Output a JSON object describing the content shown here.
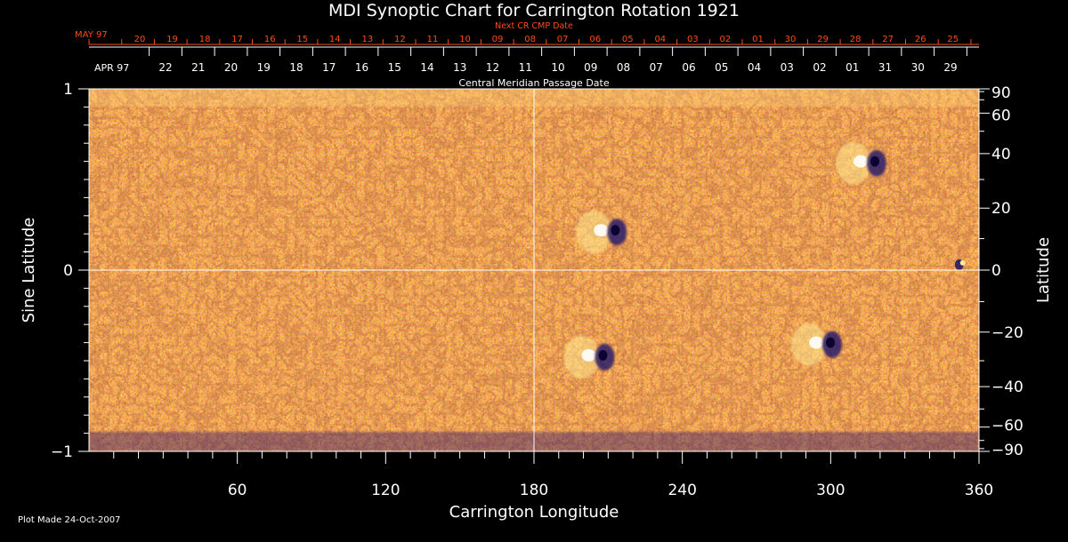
{
  "chart_data": {
    "type": "heatmap",
    "title": "MDI Synoptic Chart for Carrington Rotation 1921",
    "xlabel": "Carrington Longitude",
    "ylabel_left": "Sine Latitude",
    "ylabel_right": "Latitude",
    "x_range": [
      0,
      360
    ],
    "y_range": [
      -1,
      1
    ],
    "x_ticks": [
      60,
      120,
      180,
      240,
      300,
      360
    ],
    "y_ticks_left": [
      -1,
      0,
      1
    ],
    "y_ticks_left_labels": [
      "−1",
      "0",
      "1"
    ],
    "y_ticks_right": [
      90,
      60,
      40,
      20,
      0,
      -20,
      -40,
      -60,
      -90
    ],
    "y_ticks_right_labels": [
      "90",
      "60",
      "40",
      "20",
      "0",
      "−20",
      "−40",
      "−60",
      "−90"
    ],
    "top_axis_upper": {
      "caption": "Next CR CMP Date",
      "start_label": "MAY 97",
      "labels": [
        "20",
        "19",
        "18",
        "17",
        "16",
        "15",
        "14",
        "13",
        "12",
        "11",
        "10",
        "09",
        "08",
        "07",
        "06",
        "05",
        "04",
        "03",
        "02",
        "01",
        "30",
        "29",
        "28",
        "27",
        "26",
        "25"
      ]
    },
    "top_axis_lower": {
      "caption": "Central Meridian Passage Date",
      "start_label": "APR 97",
      "labels": [
        "22",
        "21",
        "20",
        "19",
        "18",
        "17",
        "16",
        "15",
        "14",
        "13",
        "12",
        "11",
        "10",
        "09",
        "08",
        "07",
        "06",
        "05",
        "04",
        "03",
        "02",
        "01",
        "31",
        "30",
        "29"
      ]
    },
    "grid": "lines at longitude 180 and sine latitude 0",
    "colors": {
      "background": "#000000",
      "field": "#ee4a12",
      "positive": "#ffe890",
      "negative": "#2a1a6a",
      "upper_axis": "#ff4a1a",
      "text": "#ffffff"
    },
    "active_regions": [
      {
        "longitude": 210,
        "sin_latitude": 0.22,
        "polarity": "bipolar"
      },
      {
        "longitude": 205,
        "sin_latitude": -0.47,
        "polarity": "bipolar"
      },
      {
        "longitude": 297,
        "sin_latitude": -0.4,
        "polarity": "bipolar"
      },
      {
        "longitude": 315,
        "sin_latitude": 0.6,
        "polarity": "bipolar"
      },
      {
        "longitude": 352,
        "sin_latitude": 0.03,
        "polarity": "negative"
      }
    ],
    "footer": "Plot Made 24-Oct-2007"
  }
}
